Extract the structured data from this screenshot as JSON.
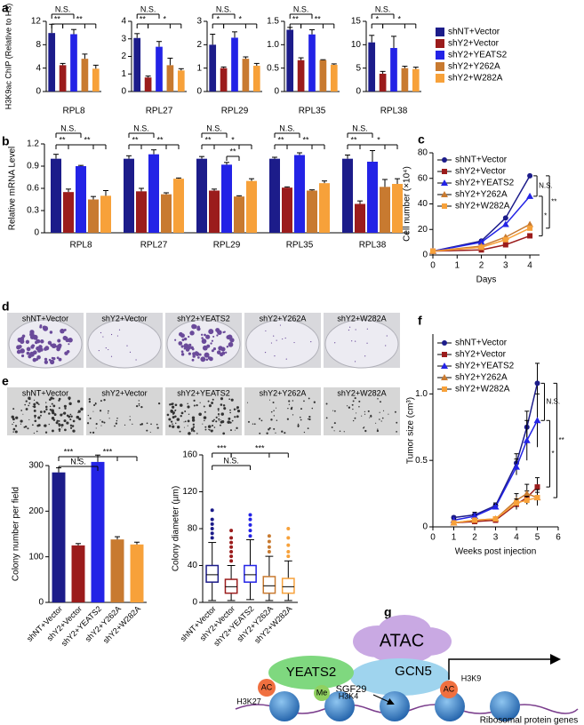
{
  "chart_data": [
    {
      "type": "bar-panels",
      "label": "a",
      "ylabel": "H3K9ac ChIP (Relative to H3)",
      "series": [
        {
          "name": "shNT+Vector",
          "color": "#1c1c8a"
        },
        {
          "name": "shY2+Vector",
          "color": "#9b1c1c"
        },
        {
          "name": "shY2+YEATS2",
          "color": "#2323e6"
        },
        {
          "name": "shY2+Y262A",
          "color": "#c87a30"
        },
        {
          "name": "shY2+W282A",
          "color": "#f7a13a"
        }
      ],
      "panels": [
        {
          "category": "RPL8",
          "ylim": [
            0,
            12
          ],
          "yticks": [
            0,
            4,
            8,
            12
          ],
          "values": [
            10,
            4.5,
            9.8,
            5.6,
            3.9
          ],
          "errors": [
            1.5,
            0.3,
            0.8,
            0.8,
            0.6
          ],
          "annotations": [
            "N.S.",
            "**",
            "**"
          ]
        },
        {
          "category": "RPL27",
          "ylim": [
            0,
            4
          ],
          "yticks": [
            0,
            1,
            2,
            3,
            4
          ],
          "values": [
            3.05,
            0.8,
            2.55,
            1.5,
            1.2
          ],
          "errors": [
            0.25,
            0.08,
            0.3,
            0.4,
            0.1
          ],
          "annotations": [
            "N.S.",
            "**",
            "*"
          ]
        },
        {
          "category": "RPL29",
          "ylim": [
            0,
            3
          ],
          "yticks": [
            0,
            1,
            2,
            3
          ],
          "values": [
            2.0,
            1.0,
            2.3,
            1.4,
            1.1
          ],
          "errors": [
            0.45,
            0.05,
            0.25,
            0.08,
            0.1
          ],
          "annotations": [
            "N.S.",
            "*",
            "*"
          ]
        },
        {
          "category": "RPL35",
          "ylim": [
            0,
            1.5
          ],
          "yticks": [
            0,
            0.5,
            {
              "value": 1,
              "label": "1.0"
            },
            1.5
          ],
          "values": [
            1.32,
            0.67,
            1.22,
            0.67,
            0.57
          ],
          "errors": [
            0.05,
            0.05,
            0.1,
            0.01,
            0.02
          ],
          "annotations": [
            "N.S.",
            "**",
            "**"
          ]
        },
        {
          "category": "RPL38",
          "ylim": [
            0,
            15
          ],
          "yticks": [
            0,
            5,
            10,
            15
          ],
          "values": [
            10.5,
            3.8,
            9.3,
            5.0,
            4.8
          ],
          "errors": [
            1.5,
            0.5,
            2.5,
            0.4,
            0.4
          ],
          "annotations": [
            "N.S.",
            "*",
            "*"
          ]
        }
      ]
    },
    {
      "type": "grouped-bar",
      "label": "b",
      "ylabel": "Relative mRNA Level",
      "categories": [
        "RPL8",
        "RPL27",
        "RPL29",
        "RPL35",
        "RPL38"
      ],
      "ylim": [
        0,
        1.2
      ],
      "yticks": [
        0,
        0.3,
        0.6,
        0.9,
        1.2
      ],
      "series": [
        {
          "name": "shNT+Vector",
          "color": "#1c1c8a",
          "values": [
            1.0,
            1.0,
            1.0,
            1.0,
            1.0
          ],
          "errors": [
            0.06,
            0.04,
            0.03,
            0.02,
            0.05
          ]
        },
        {
          "name": "shY2+Vector",
          "color": "#9b1c1c",
          "values": [
            0.55,
            0.56,
            0.57,
            0.61,
            0.39
          ],
          "errors": [
            0.04,
            0.04,
            0.02,
            0.01,
            0.04
          ]
        },
        {
          "name": "shY2+YEATS2",
          "color": "#2323e6",
          "values": [
            0.9,
            1.06,
            0.92,
            1.05,
            0.96
          ],
          "errors": [
            0.01,
            0.06,
            0.03,
            0.03,
            0.15
          ]
        },
        {
          "name": "shY2+Y262A",
          "color": "#c87a30",
          "values": [
            0.45,
            0.52,
            0.49,
            0.57,
            0.62
          ],
          "errors": [
            0.04,
            0.02,
            0.01,
            0.01,
            0.1
          ]
        },
        {
          "name": "shY2+W282A",
          "color": "#f7a13a",
          "values": [
            0.5,
            0.73,
            0.7,
            0.67,
            0.66
          ],
          "errors": [
            0.07,
            0.01,
            0.03,
            0.03,
            0.07
          ]
        }
      ],
      "annotations": [
        [
          "N.S.",
          "**",
          "**"
        ],
        [
          "N.S.",
          "**",
          "**"
        ],
        [
          "N.S.",
          "**",
          "*",
          "**"
        ],
        [
          "N.S.",
          "**",
          "**"
        ],
        [
          "N.S.",
          "**",
          "*"
        ]
      ]
    },
    {
      "type": "line",
      "label": "c",
      "xlabel": "Days",
      "ylabel": "Cell number (×10⁴)",
      "x": [
        0,
        2,
        3,
        4
      ],
      "xlim": [
        0,
        4.4
      ],
      "xticks": [
        0,
        1,
        2,
        3,
        4
      ],
      "ylim": [
        0,
        80
      ],
      "yticks": [
        0,
        20,
        40,
        60,
        80
      ],
      "legend": "top-left",
      "series": [
        {
          "name": "shNT+Vector",
          "color": "#1c1c8a",
          "values": [
            3,
            11,
            29,
            62
          ]
        },
        {
          "name": "shY2+Vector",
          "color": "#9b1c1c",
          "values": [
            3,
            4,
            8,
            15
          ]
        },
        {
          "name": "shY2+YEATS2",
          "color": "#2323e6",
          "values": [
            3,
            10,
            24,
            46
          ]
        },
        {
          "name": "shY2+Y262A",
          "color": "#c87a30",
          "values": [
            3,
            7,
            14,
            24
          ]
        },
        {
          "name": "shY2+W282A",
          "color": "#f7a13a",
          "values": [
            3,
            6,
            12,
            21
          ]
        }
      ],
      "annotations": [
        "N.S.",
        "**",
        "*"
      ]
    },
    {
      "type": "image-row",
      "label": "d",
      "captions": [
        "shNT+Vector",
        "shY2+Vector",
        "shY2+YEATS2",
        "shY2+Y262A",
        "shY2+W282A"
      ]
    },
    {
      "type": "image-row",
      "label": "e",
      "captions": [
        "shNT+Vector",
        "shY2+Vector",
        "shY2+YEATS2",
        "shY2+Y262A",
        "shY2+W282A"
      ]
    },
    {
      "type": "bar",
      "ylabel": "Colony number per field",
      "categories": [
        "shNT+Vector",
        "shY2+Vector",
        "shY2+YEATS2",
        "shY2+Y262A",
        "shY2+W282A"
      ],
      "colors": [
        "#1c1c8a",
        "#9b1c1c",
        "#2323e6",
        "#c87a30",
        "#f7a13a"
      ],
      "values": [
        285,
        125,
        308,
        138,
        127
      ],
      "errors": [
        10,
        4,
        15,
        6,
        5
      ],
      "ylim": [
        0,
        300
      ],
      "yticks": [
        0,
        100,
        200,
        300
      ],
      "annotations": [
        "***",
        "N.S.",
        "***"
      ]
    },
    {
      "type": "box",
      "ylabel": "Colony diameter (µm)",
      "categories": [
        "shNT+Vector",
        "shY2+Vector",
        "shY2+YEATS2",
        "shY2+Y262A",
        "shY2+W282A"
      ],
      "colors": [
        "#1c1c8a",
        "#9b1c1c",
        "#2323e6",
        "#c87a30",
        "#f7a13a"
      ],
      "whisker_low": [
        2,
        2,
        3,
        2,
        2
      ],
      "q1": [
        22,
        10,
        22,
        10,
        10
      ],
      "median": [
        30,
        17,
        30,
        18,
        17
      ],
      "q3": [
        40,
        25,
        40,
        28,
        26
      ],
      "whisker_high": [
        65,
        40,
        68,
        50,
        45
      ],
      "outliers": [
        [
          70,
          75,
          80,
          85,
          90,
          100
        ],
        [
          45,
          50,
          55,
          60,
          65,
          70,
          78
        ],
        [
          72,
          78,
          84,
          90,
          95
        ],
        [
          55,
          60,
          66,
          72
        ],
        [
          50,
          55,
          62,
          70,
          80
        ]
      ],
      "ylim": [
        0,
        160
      ],
      "yticks": [
        0,
        40,
        80,
        120,
        160
      ],
      "annotations": [
        "***",
        "N.S.",
        "***"
      ]
    },
    {
      "type": "line",
      "label": "f",
      "xlabel": "Weeks post injection",
      "ylabel": "Tumor size (cm³)",
      "x": [
        1,
        2,
        3,
        4,
        4.5,
        5
      ],
      "xlim": [
        0,
        6
      ],
      "xticks": [
        0,
        1,
        2,
        3,
        4,
        5,
        6
      ],
      "ylim": [
        0,
        1.45
      ],
      "yticks": [
        0,
        0.5,
        {
          "value": 1,
          "label": "1.0"
        }
      ],
      "legend": "top-left",
      "series": [
        {
          "name": "shNT+Vector",
          "color": "#1c1c8a",
          "values": [
            0.07,
            0.09,
            0.16,
            0.48,
            0.75,
            1.08
          ],
          "errors": [
            0.01,
            0.02,
            0.02,
            0.07,
            0.12,
            0.15
          ]
        },
        {
          "name": "shY2+Vector",
          "color": "#9b1c1c",
          "values": [
            0.03,
            0.04,
            0.05,
            0.17,
            0.22,
            0.3
          ],
          "errors": [
            0.01,
            0.01,
            0.01,
            0.04,
            0.05,
            0.07
          ]
        },
        {
          "name": "shY2+YEATS2",
          "color": "#2323e6",
          "values": [
            0.05,
            0.08,
            0.15,
            0.45,
            0.65,
            0.8
          ],
          "errors": [
            0.01,
            0.01,
            0.02,
            0.06,
            0.15,
            0.2
          ]
        },
        {
          "name": "shY2+Y262A",
          "color": "#c87a30",
          "values": [
            0.03,
            0.05,
            0.06,
            0.2,
            0.25,
            0.22
          ],
          "errors": [
            0.01,
            0.01,
            0.01,
            0.05,
            0.07,
            0.06
          ]
        },
        {
          "name": "shY2+W282A",
          "color": "#f7a13a",
          "values": [
            0.03,
            0.05,
            0.06,
            0.18,
            0.2,
            0.22
          ],
          "errors": [
            0.01,
            0.01,
            0.01,
            0.03,
            0.03,
            0.04
          ]
        }
      ],
      "annotations": [
        "N.S.",
        "**",
        "*"
      ]
    }
  ],
  "diagram": {
    "label": "g",
    "complex": "ATAC",
    "subunits": [
      "YEATS2",
      "GCN5",
      "SGF29"
    ],
    "marks": [
      {
        "mark": "AC",
        "site": "H3K27"
      },
      {
        "mark": "Me",
        "site": "H3K4"
      },
      {
        "mark": "AC",
        "site": "H3K9"
      }
    ],
    "genes": "Ribosomal protein genes"
  }
}
